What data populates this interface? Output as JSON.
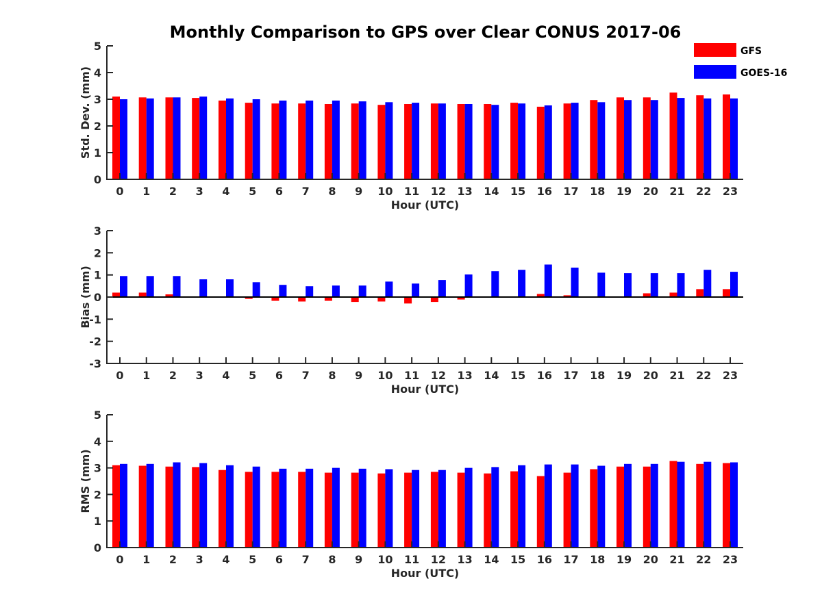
{
  "figure": {
    "title": "Monthly Comparison to GPS over Clear CONUS 2017-06"
  },
  "legend": {
    "placement": "top-right",
    "items": [
      {
        "name": "GFS",
        "color": "#ff0000"
      },
      {
        "name": "GOES-16",
        "color": "#0000ff"
      }
    ]
  },
  "chart_data": [
    {
      "type": "bar",
      "xlabel": "Hour (UTC)",
      "ylabel": "Std. Dev. (mm)",
      "ylim": [
        0,
        5
      ],
      "yticks": [
        0,
        1,
        2,
        3,
        4,
        5
      ],
      "categories": [
        "0",
        "1",
        "2",
        "3",
        "4",
        "5",
        "6",
        "7",
        "8",
        "9",
        "10",
        "11",
        "12",
        "13",
        "14",
        "15",
        "16",
        "17",
        "18",
        "19",
        "20",
        "21",
        "22",
        "23"
      ],
      "series": [
        {
          "name": "GFS",
          "color": "#ff0000",
          "values": [
            3.1,
            3.07,
            3.07,
            3.05,
            2.95,
            2.87,
            2.84,
            2.84,
            2.82,
            2.84,
            2.79,
            2.82,
            2.84,
            2.82,
            2.82,
            2.87,
            2.72,
            2.84,
            2.97,
            3.07,
            3.07,
            3.25,
            3.15,
            3.18
          ]
        },
        {
          "name": "GOES-16",
          "color": "#0000ff",
          "values": [
            3.0,
            3.03,
            3.07,
            3.1,
            3.03,
            3.0,
            2.95,
            2.95,
            2.95,
            2.92,
            2.89,
            2.87,
            2.84,
            2.82,
            2.79,
            2.84,
            2.77,
            2.87,
            2.89,
            2.97,
            2.97,
            3.05,
            3.03,
            3.03
          ]
        }
      ]
    },
    {
      "type": "bar",
      "xlabel": "Hour (UTC)",
      "ylabel": "Bias (mm)",
      "ylim": [
        -3,
        3
      ],
      "yticks": [
        -3,
        -2,
        -1,
        0,
        1,
        2,
        3
      ],
      "zero_line": true,
      "categories": [
        "0",
        "1",
        "2",
        "3",
        "4",
        "5",
        "6",
        "7",
        "8",
        "9",
        "10",
        "11",
        "12",
        "13",
        "14",
        "15",
        "16",
        "17",
        "18",
        "19",
        "20",
        "21",
        "22",
        "23"
      ],
      "series": [
        {
          "name": "GFS",
          "color": "#ff0000",
          "values": [
            0.2,
            0.2,
            0.12,
            0.02,
            0.0,
            -0.08,
            -0.17,
            -0.2,
            -0.17,
            -0.22,
            -0.2,
            -0.29,
            -0.22,
            -0.11,
            -0.03,
            0.0,
            0.14,
            0.08,
            0.0,
            0.0,
            0.17,
            0.2,
            0.36,
            0.36
          ]
        },
        {
          "name": "GOES-16",
          "color": "#0000ff",
          "values": [
            0.95,
            0.95,
            0.95,
            0.8,
            0.8,
            0.67,
            0.55,
            0.49,
            0.52,
            0.52,
            0.7,
            0.61,
            0.77,
            1.02,
            1.17,
            1.23,
            1.47,
            1.33,
            1.1,
            1.08,
            1.08,
            1.08,
            1.23,
            1.14
          ]
        }
      ]
    },
    {
      "type": "bar",
      "xlabel": "Hour (UTC)",
      "ylabel": "RMS (mm)",
      "ylim": [
        0,
        5
      ],
      "yticks": [
        0,
        1,
        2,
        3,
        4,
        5
      ],
      "categories": [
        "0",
        "1",
        "2",
        "3",
        "4",
        "5",
        "6",
        "7",
        "8",
        "9",
        "10",
        "11",
        "12",
        "13",
        "14",
        "15",
        "16",
        "17",
        "18",
        "19",
        "20",
        "21",
        "22",
        "23"
      ],
      "series": [
        {
          "name": "GFS",
          "color": "#ff0000",
          "values": [
            3.1,
            3.08,
            3.05,
            3.03,
            2.92,
            2.85,
            2.85,
            2.85,
            2.82,
            2.82,
            2.79,
            2.82,
            2.85,
            2.82,
            2.79,
            2.87,
            2.69,
            2.82,
            2.95,
            3.05,
            3.05,
            3.26,
            3.15,
            3.18
          ]
        },
        {
          "name": "GOES-16",
          "color": "#0000ff",
          "values": [
            3.15,
            3.15,
            3.21,
            3.18,
            3.1,
            3.05,
            2.97,
            2.97,
            3.0,
            2.97,
            2.95,
            2.92,
            2.92,
            3.0,
            3.03,
            3.1,
            3.13,
            3.13,
            3.08,
            3.15,
            3.15,
            3.23,
            3.23,
            3.21
          ]
        }
      ]
    }
  ]
}
